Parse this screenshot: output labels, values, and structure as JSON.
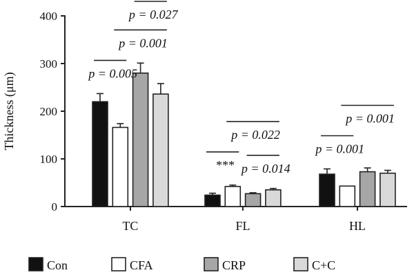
{
  "chart_data": {
    "type": "bar",
    "title": "",
    "xlabel": "",
    "ylabel": "Thickness (μm)",
    "ylim": [
      0,
      400
    ],
    "yticks": [
      "0",
      "100",
      "200",
      "300",
      "400"
    ],
    "categories": [
      "TC",
      "FL",
      "HL"
    ],
    "series": [
      {
        "name": "Con",
        "color": "#111111",
        "values": [
          220,
          24,
          68
        ],
        "errors": [
          17,
          4,
          11
        ]
      },
      {
        "name": "CFA",
        "color": "#ffffff",
        "values": [
          166,
          42,
          43
        ],
        "errors": [
          8,
          3,
          0
        ]
      },
      {
        "name": "CRP",
        "color": "#a6a6a6",
        "values": [
          280,
          27,
          73
        ],
        "errors": [
          21,
          2,
          8
        ]
      },
      {
        "name": "C+C",
        "color": "#d9d9d9",
        "values": [
          236,
          35,
          70
        ],
        "errors": [
          22,
          3,
          6
        ]
      }
    ],
    "legend_position": "bottom",
    "annotations": [
      {
        "text": "p = 0.005",
        "category": 0,
        "from_series": 0,
        "to_series": 1
      },
      {
        "text": "p = 0.001",
        "category": 0,
        "from_series": 1,
        "to_series": 3
      },
      {
        "text": "p = 0.027",
        "category": 0,
        "from_series": 2,
        "to_series": 3
      },
      {
        "text": "***",
        "category": 1,
        "from_series": 0,
        "to_series": 1
      },
      {
        "text": "p = 0.022",
        "category": 1,
        "from_series": 1,
        "to_series": 3
      },
      {
        "text": "p = 0.014",
        "category": 1,
        "from_series": 2,
        "to_series": 3
      },
      {
        "text": "p = 0.001",
        "category": 2,
        "from_series": 0,
        "to_series": 1
      },
      {
        "text": "p = 0.001",
        "category": 2,
        "from_series": 1,
        "to_series": 3
      }
    ]
  }
}
